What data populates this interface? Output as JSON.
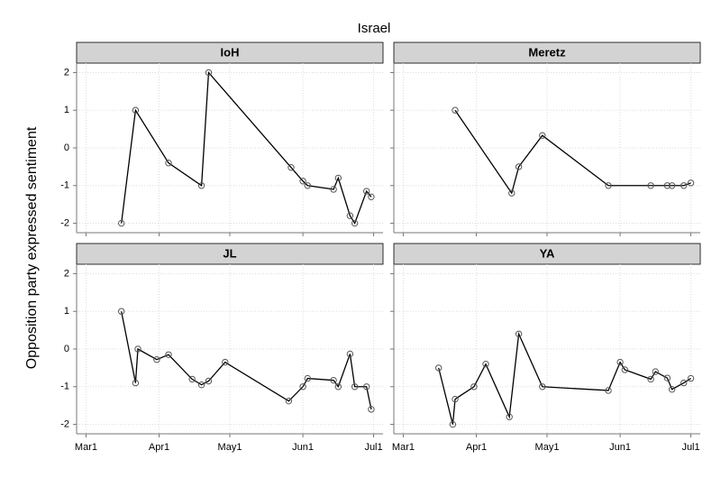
{
  "title": "Israel",
  "y_label": "Opposition party expressed sentiment",
  "chart_data": [
    {
      "type": "line",
      "title": "IoH",
      "color": "#000000",
      "grid": true,
      "x": [
        "03-16",
        "03-22",
        "04-05",
        "04-19",
        "04-22",
        "05-27",
        "06-01",
        "06-03",
        "06-14",
        "06-16",
        "06-21",
        "06-23",
        "06-28",
        "06-30"
      ],
      "values": [
        -2,
        1,
        -0.4,
        -1,
        2,
        -0.52,
        -0.88,
        -1,
        -1.1,
        -0.8,
        -1.8,
        -2,
        -1.15,
        -1.3
      ],
      "xlim": [
        "02-25",
        "07-05"
      ],
      "ylim": [
        -2.25,
        2.25
      ],
      "yticks": [
        -2,
        -1,
        0,
        1,
        2
      ],
      "xticks": [
        {
          "value": "03-01",
          "label": "Mar1"
        },
        {
          "value": "04-01",
          "label": "Apr1"
        },
        {
          "value": "05-01",
          "label": "May1"
        },
        {
          "value": "06-01",
          "label": "Jun1"
        },
        {
          "value": "07-01",
          "label": "Jul1"
        }
      ]
    },
    {
      "type": "line",
      "title": "Meretz",
      "color": "#000000",
      "grid": true,
      "x": [
        "03-23",
        "04-16",
        "04-19",
        "04-29",
        "05-27",
        "06-14",
        "06-21",
        "06-23",
        "06-28",
        "07-01"
      ],
      "values": [
        1,
        -1.2,
        -0.5,
        0.33,
        -1,
        -1,
        -1,
        -1,
        -1,
        -0.93
      ],
      "xlim": [
        "02-25",
        "07-05"
      ],
      "ylim": [
        -2.25,
        2.25
      ],
      "yticks": [
        -2,
        -1,
        0,
        1,
        2
      ],
      "xticks": [
        {
          "value": "03-01",
          "label": "Mar1"
        },
        {
          "value": "04-01",
          "label": "Apr1"
        },
        {
          "value": "05-01",
          "label": "May1"
        },
        {
          "value": "06-01",
          "label": "Jun1"
        },
        {
          "value": "07-01",
          "label": "Jul1"
        }
      ]
    },
    {
      "type": "line",
      "title": "JL",
      "color": "#000000",
      "grid": true,
      "x": [
        "03-16",
        "03-22",
        "03-23",
        "03-31",
        "04-05",
        "04-15",
        "04-19",
        "04-22",
        "04-29",
        "05-26",
        "06-01",
        "06-03",
        "06-14",
        "06-16",
        "06-21",
        "06-23",
        "06-28",
        "06-30"
      ],
      "values": [
        1,
        -0.9,
        0,
        -0.28,
        -0.15,
        -0.8,
        -0.95,
        -0.85,
        -0.35,
        -1.38,
        -1,
        -0.78,
        -0.83,
        -1,
        -0.13,
        -1,
        -1,
        -1.6
      ],
      "xlim": [
        "02-25",
        "07-05"
      ],
      "ylim": [
        -2.25,
        2.25
      ],
      "yticks": [
        -2,
        -1,
        0,
        1,
        2
      ],
      "xticks": [
        {
          "value": "03-01",
          "label": "Mar1"
        },
        {
          "value": "04-01",
          "label": "Apr1"
        },
        {
          "value": "05-01",
          "label": "May1"
        },
        {
          "value": "06-01",
          "label": "Jun1"
        },
        {
          "value": "07-01",
          "label": "Jul1"
        }
      ]
    },
    {
      "type": "line",
      "title": "YA",
      "color": "#000000",
      "grid": true,
      "x": [
        "03-16",
        "03-22",
        "03-23",
        "03-31",
        "04-05",
        "04-15",
        "04-19",
        "04-29",
        "05-27",
        "06-01",
        "06-03",
        "06-14",
        "06-16",
        "06-21",
        "06-23",
        "06-28",
        "07-01"
      ],
      "values": [
        -0.5,
        -2,
        -1.33,
        -1,
        -0.4,
        -1.8,
        0.4,
        -1,
        -1.1,
        -0.35,
        -0.55,
        -0.8,
        -0.6,
        -0.77,
        -1.07,
        -0.9,
        -0.78
      ],
      "xlim": [
        "02-25",
        "07-05"
      ],
      "ylim": [
        -2.25,
        2.25
      ],
      "yticks": [
        -2,
        -1,
        0,
        1,
        2
      ],
      "xticks": [
        {
          "value": "03-01",
          "label": "Mar1"
        },
        {
          "value": "04-01",
          "label": "Apr1"
        },
        {
          "value": "05-01",
          "label": "May1"
        },
        {
          "value": "06-01",
          "label": "Jun1"
        },
        {
          "value": "07-01",
          "label": "Jul1"
        }
      ]
    }
  ]
}
